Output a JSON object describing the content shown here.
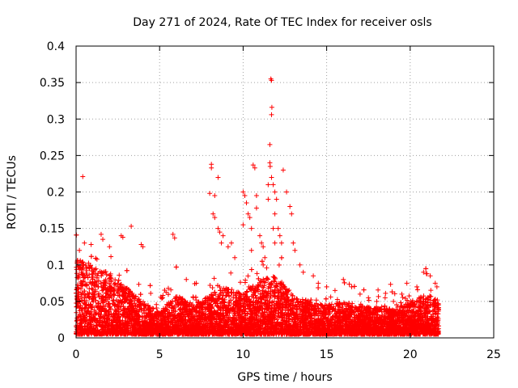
{
  "chart_data": {
    "type": "scatter",
    "title": "Day 271 of 2024, Rate Of TEC Index for receiver osls",
    "xlabel": "GPS time / hours",
    "ylabel": "ROTI / TECUs",
    "xlim": [
      0,
      25
    ],
    "ylim": [
      0,
      0.4
    ],
    "xticks": [
      0,
      5,
      10,
      15,
      20,
      25
    ],
    "xtick_labels": [
      "0",
      "5",
      "10",
      "15",
      "20",
      "25"
    ],
    "yticks": [
      0,
      0.05,
      0.1,
      0.15,
      0.2,
      0.25,
      0.3,
      0.35,
      0.4
    ],
    "ytick_labels": [
      "0",
      "0.05",
      "0.1",
      "0.15",
      "0.2",
      "0.25",
      "0.3",
      "0.35",
      "0.4"
    ],
    "grid": true,
    "marker": "plus",
    "color": "#ff0000",
    "series": [
      {
        "name": "ROTI",
        "points": [
          [
            0.4,
            0.221
          ],
          [
            0.2,
            0.12
          ],
          [
            0.5,
            0.13
          ],
          [
            0.9,
            0.128
          ],
          [
            1.5,
            0.142
          ],
          [
            1.6,
            0.135
          ],
          [
            2.0,
            0.125
          ],
          [
            2.7,
            0.14
          ],
          [
            2.8,
            0.138
          ],
          [
            3.3,
            0.153
          ],
          [
            3.9,
            0.128
          ],
          [
            4.0,
            0.125
          ],
          [
            5.8,
            0.142
          ],
          [
            5.9,
            0.137
          ],
          [
            6.6,
            0.08
          ],
          [
            7.2,
            0.075
          ],
          [
            8.1,
            0.238
          ],
          [
            8.1,
            0.233
          ],
          [
            8.0,
            0.198
          ],
          [
            8.3,
            0.195
          ],
          [
            8.5,
            0.22
          ],
          [
            8.2,
            0.17
          ],
          [
            8.3,
            0.165
          ],
          [
            8.5,
            0.15
          ],
          [
            8.6,
            0.145
          ],
          [
            8.8,
            0.14
          ],
          [
            8.7,
            0.13
          ],
          [
            9.1,
            0.125
          ],
          [
            9.5,
            0.11
          ],
          [
            9.3,
            0.13
          ],
          [
            10.0,
            0.2
          ],
          [
            10.1,
            0.195
          ],
          [
            10.2,
            0.185
          ],
          [
            10.3,
            0.17
          ],
          [
            10.4,
            0.165
          ],
          [
            10.0,
            0.155
          ],
          [
            10.5,
            0.15
          ],
          [
            10.5,
            0.12
          ],
          [
            10.6,
            0.237
          ],
          [
            10.7,
            0.233
          ],
          [
            10.8,
            0.195
          ],
          [
            10.8,
            0.178
          ],
          [
            11.0,
            0.14
          ],
          [
            11.1,
            0.13
          ],
          [
            11.2,
            0.125
          ],
          [
            11.5,
            0.21
          ],
          [
            11.5,
            0.19
          ],
          [
            11.2,
            0.1
          ],
          [
            11.8,
            0.15
          ],
          [
            11.9,
            0.13
          ],
          [
            11.3,
            0.11
          ],
          [
            11.66,
            0.355
          ],
          [
            11.7,
            0.353
          ],
          [
            11.72,
            0.316
          ],
          [
            11.7,
            0.306
          ],
          [
            11.6,
            0.265
          ],
          [
            11.6,
            0.24
          ],
          [
            11.62,
            0.235
          ],
          [
            11.7,
            0.22
          ],
          [
            11.8,
            0.21
          ],
          [
            11.9,
            0.2
          ],
          [
            12.0,
            0.19
          ],
          [
            11.9,
            0.17
          ],
          [
            12.1,
            0.15
          ],
          [
            12.2,
            0.14
          ],
          [
            12.3,
            0.13
          ],
          [
            12.4,
            0.23
          ],
          [
            12.6,
            0.2
          ],
          [
            12.8,
            0.18
          ],
          [
            12.9,
            0.17
          ],
          [
            13.0,
            0.13
          ],
          [
            13.1,
            0.12
          ],
          [
            13.4,
            0.1
          ],
          [
            13.6,
            0.09
          ],
          [
            14.2,
            0.085
          ],
          [
            14.5,
            0.075
          ],
          [
            15.0,
            0.07
          ],
          [
            15.5,
            0.065
          ],
          [
            16.0,
            0.08
          ],
          [
            16.5,
            0.07
          ],
          [
            17.0,
            0.06
          ],
          [
            17.5,
            0.055
          ],
          [
            18.0,
            0.05
          ],
          [
            18.5,
            0.055
          ],
          [
            19.0,
            0.05
          ],
          [
            19.5,
            0.06
          ],
          [
            19.8,
            0.075
          ],
          [
            20.4,
            0.07
          ],
          [
            20.8,
            0.09
          ],
          [
            21.0,
            0.088
          ],
          [
            21.2,
            0.085
          ],
          [
            21.5,
            0.075
          ],
          [
            21.6,
            0.07
          ]
        ]
      }
    ],
    "density": {
      "description": "dense band of ROTI samples across 0-21.7 h",
      "x_range": [
        0,
        21.7
      ],
      "baseline_min": 0.005,
      "baseline_max": [
        [
          0,
          0.11
        ],
        [
          1,
          0.1
        ],
        [
          2,
          0.09
        ],
        [
          3,
          0.07
        ],
        [
          4,
          0.05
        ],
        [
          5,
          0.035
        ],
        [
          6,
          0.06
        ],
        [
          7,
          0.045
        ],
        [
          8,
          0.06
        ],
        [
          9,
          0.07
        ],
        [
          10,
          0.06
        ],
        [
          11,
          0.08
        ],
        [
          12,
          0.085
        ],
        [
          13,
          0.06
        ],
        [
          14,
          0.05
        ],
        [
          15,
          0.045
        ],
        [
          16,
          0.05
        ],
        [
          17,
          0.045
        ],
        [
          18,
          0.04
        ],
        [
          19,
          0.04
        ],
        [
          20,
          0.05
        ],
        [
          21,
          0.06
        ],
        [
          21.7,
          0.05
        ]
      ]
    }
  }
}
